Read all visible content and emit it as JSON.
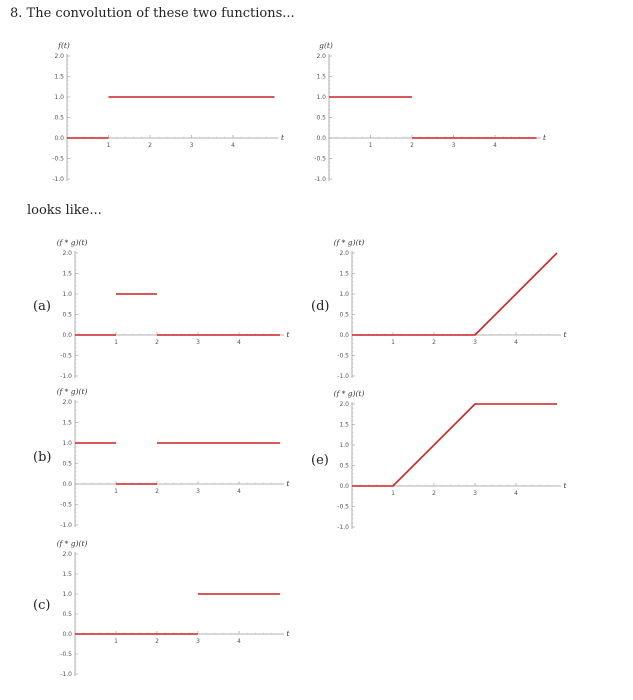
{
  "question": {
    "number": "8.",
    "text": "The convolution of these two functions..."
  },
  "subtext": "looks like...",
  "options": {
    "a": "(a)",
    "b": "(b)",
    "c": "(c)",
    "d": "(d)",
    "e": "(e)"
  },
  "colors": {
    "curve": "#cc2222",
    "axis": "#999999"
  },
  "chart_data": [
    {
      "id": "f",
      "type": "line",
      "ylabel": "f(t)",
      "xlabel": "t",
      "xlim": [
        0,
        5
      ],
      "ylim": [
        -1,
        2
      ],
      "x_ticks": [
        1,
        2,
        3,
        4
      ],
      "y_ticks": [
        -1.0,
        -0.5,
        0.0,
        0.5,
        1.0,
        1.5,
        2.0
      ],
      "segments": [
        [
          [
            0,
            0
          ],
          [
            1,
            0
          ]
        ],
        [
          [
            1,
            1
          ],
          [
            5,
            1
          ]
        ]
      ]
    },
    {
      "id": "g",
      "type": "line",
      "ylabel": "g(t)",
      "xlabel": "t",
      "xlim": [
        0,
        5
      ],
      "ylim": [
        -1,
        2
      ],
      "x_ticks": [
        1,
        2,
        3,
        4
      ],
      "y_ticks": [
        -1.0,
        -0.5,
        0.0,
        0.5,
        1.0,
        1.5,
        2.0
      ],
      "segments": [
        [
          [
            0,
            1
          ],
          [
            2,
            1
          ]
        ],
        [
          [
            2,
            0
          ],
          [
            5,
            0
          ]
        ]
      ]
    },
    {
      "id": "a",
      "type": "line",
      "ylabel": "(f * g)(t)",
      "xlabel": "t",
      "xlim": [
        0,
        5
      ],
      "ylim": [
        -1,
        2
      ],
      "x_ticks": [
        1,
        2,
        3,
        4
      ],
      "y_ticks": [
        -1.0,
        -0.5,
        0.0,
        0.5,
        1.0,
        1.5,
        2.0
      ],
      "segments": [
        [
          [
            0,
            0
          ],
          [
            1,
            0
          ]
        ],
        [
          [
            1,
            1
          ],
          [
            2,
            1
          ]
        ],
        [
          [
            2,
            0
          ],
          [
            5,
            0
          ]
        ]
      ]
    },
    {
      "id": "b",
      "type": "line",
      "ylabel": "(f * g)(t)",
      "xlabel": "t",
      "xlim": [
        0,
        5
      ],
      "ylim": [
        -1,
        2
      ],
      "x_ticks": [
        1,
        2,
        3,
        4
      ],
      "y_ticks": [
        -1.0,
        -0.5,
        0.0,
        0.5,
        1.0,
        1.5,
        2.0
      ],
      "segments": [
        [
          [
            0,
            1
          ],
          [
            1,
            1
          ]
        ],
        [
          [
            1,
            0
          ],
          [
            2,
            0
          ]
        ],
        [
          [
            2,
            1
          ],
          [
            5,
            1
          ]
        ]
      ]
    },
    {
      "id": "c",
      "type": "line",
      "ylabel": "(f * g)(t)",
      "xlabel": "t",
      "xlim": [
        0,
        5
      ],
      "ylim": [
        -1,
        2
      ],
      "x_ticks": [
        1,
        2,
        3,
        4
      ],
      "y_ticks": [
        -1.0,
        -0.5,
        0.0,
        0.5,
        1.0,
        1.5,
        2.0
      ],
      "segments": [
        [
          [
            0,
            0
          ],
          [
            3,
            0
          ]
        ],
        [
          [
            3,
            1
          ],
          [
            5,
            1
          ]
        ]
      ]
    },
    {
      "id": "d",
      "type": "line",
      "ylabel": "(f * g)(t)",
      "xlabel": "t",
      "xlim": [
        0,
        5
      ],
      "ylim": [
        -1,
        2
      ],
      "x_ticks": [
        1,
        2,
        3,
        4
      ],
      "y_ticks": [
        -1.0,
        -0.5,
        0.0,
        0.5,
        1.0,
        1.5,
        2.0
      ],
      "segments": [
        [
          [
            0,
            0
          ],
          [
            3,
            0
          ],
          [
            5,
            2
          ]
        ]
      ]
    },
    {
      "id": "e",
      "type": "line",
      "ylabel": "(f * g)(t)",
      "xlabel": "t",
      "xlim": [
        0,
        5
      ],
      "ylim": [
        -1,
        2
      ],
      "x_ticks": [
        1,
        2,
        3,
        4
      ],
      "y_ticks": [
        -1.0,
        -0.5,
        0.0,
        0.5,
        1.0,
        1.5,
        2.0
      ],
      "segments": [
        [
          [
            0,
            0
          ],
          [
            1,
            0
          ],
          [
            3,
            2
          ],
          [
            5,
            2
          ]
        ]
      ]
    }
  ]
}
